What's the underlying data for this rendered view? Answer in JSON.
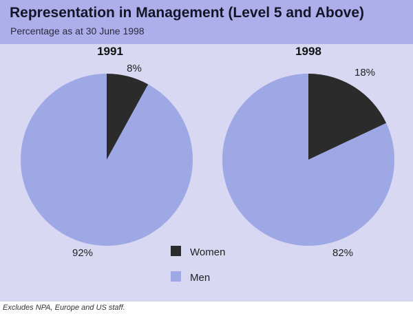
{
  "header": {
    "title": "Representation in Management (Level 5 and Above)",
    "subtitle": "Percentage as at 30 June 1998"
  },
  "footnote": "Excludes NPA, Europe and US staff.",
  "colors": {
    "women": "#2b2b2b",
    "men": "#9ea8e4",
    "panel": "#d8d8f3",
    "header": "#aeaeea"
  },
  "chart_data": {
    "type": "pie",
    "categories": [
      "Women",
      "Men"
    ],
    "series": [
      {
        "name": "1991",
        "values": [
          8,
          92
        ],
        "labels": [
          "8%",
          "92%"
        ]
      },
      {
        "name": "1998",
        "values": [
          18,
          82
        ],
        "labels": [
          "18%",
          "82%"
        ]
      }
    ],
    "legend": {
      "position": "bottom-center",
      "entries": [
        "Women",
        "Men"
      ]
    }
  }
}
